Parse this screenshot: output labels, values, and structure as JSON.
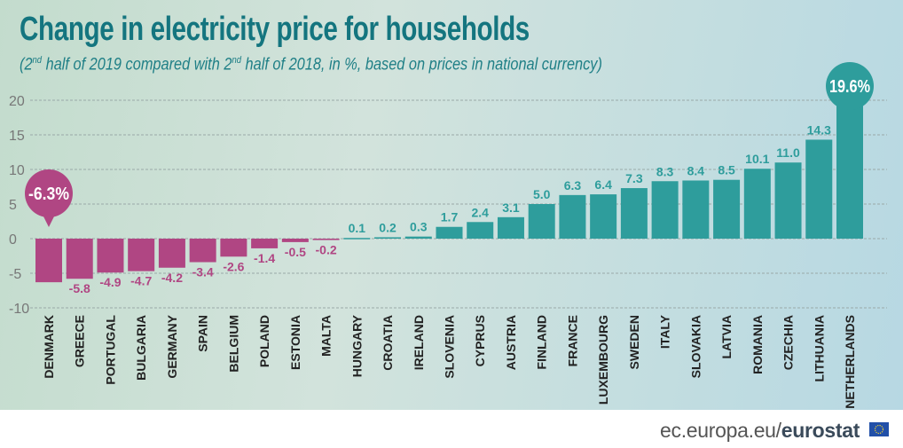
{
  "title": "Change in electricity price for households",
  "subtitle": {
    "p1": "(2",
    "s1": "nd",
    "p2": " half of 2019 compared with 2",
    "s2": "nd",
    "p3": " half of 2018, in %, based on prices in national currency)"
  },
  "footer": {
    "site": "ec.europa.eu/",
    "brand": "eurostat"
  },
  "colors": {
    "negative": "#b04683",
    "positive": "#2e9d9c",
    "title": "#14757f"
  },
  "chart_data": {
    "type": "bar",
    "categories": [
      "DENMARK",
      "GREECE",
      "PORTUGAL",
      "BULGARIA",
      "GERMANY",
      "SPAIN",
      "BELGIUM",
      "POLAND",
      "ESTONIA",
      "MALTA",
      "HUNGARY",
      "CROATIA",
      "IRELAND",
      "SLOVENIA",
      "CYPRUS",
      "AUSTRIA",
      "FINLAND",
      "FRANCE",
      "LUXEMBOURG",
      "SWEDEN",
      "ITALY",
      "SLOVAKIA",
      "LATVIA",
      "ROMANIA",
      "CZECHIA",
      "LITHUANIA",
      "NETHERLANDS"
    ],
    "values": [
      -6.3,
      -5.8,
      -4.9,
      -4.7,
      -4.2,
      -3.4,
      -2.6,
      -1.4,
      -0.5,
      -0.2,
      0.1,
      0.2,
      0.3,
      1.7,
      2.4,
      3.1,
      5.0,
      6.3,
      6.4,
      7.3,
      8.3,
      8.4,
      8.5,
      10.1,
      11.0,
      14.3,
      19.6
    ],
    "labels": [
      "-6.3%",
      "-5.8",
      "-4.9",
      "-4.7",
      "-4.2",
      "-3.4",
      "-2.6",
      "-1.4",
      "-0.5",
      "-0.2",
      "0.1",
      "0.2",
      "0.3",
      "1.7",
      "2.4",
      "3.1",
      "5.0",
      "6.3",
      "6.4",
      "7.3",
      "8.3",
      "8.4",
      "8.5",
      "10.1",
      "11.0",
      "14.3",
      "19.6%"
    ],
    "highlighted": [
      "DENMARK",
      "NETHERLANDS"
    ],
    "yticks": [
      20,
      15,
      10,
      5,
      0,
      -5,
      -10
    ],
    "ylim": [
      -10,
      20
    ],
    "grid": true
  }
}
